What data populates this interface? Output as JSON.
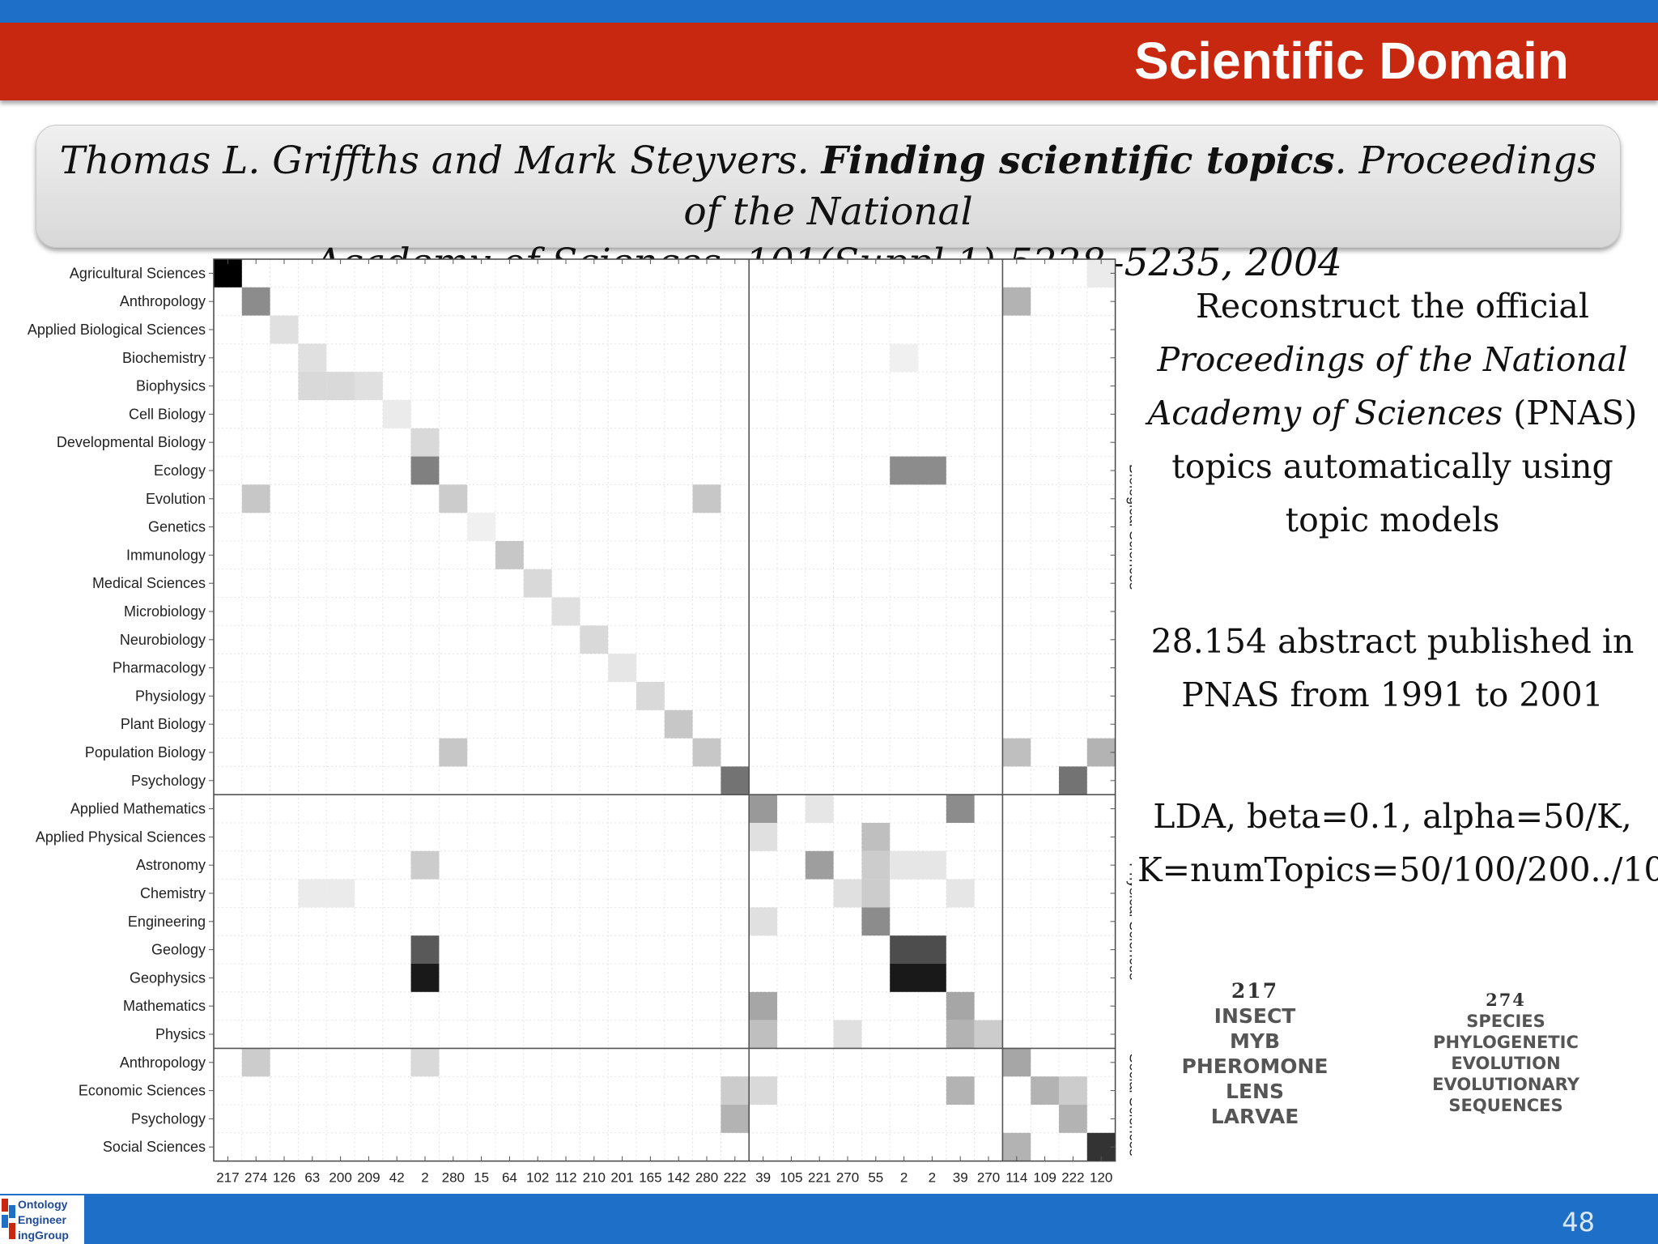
{
  "slide": {
    "title": "Scientific Domain",
    "page_number": "48",
    "logo_text": [
      "Ontology",
      "Engineer",
      "ingGroup"
    ]
  },
  "citation": {
    "authors": "Thomas L. Griffths and Mark Steyvers. ",
    "paper_title": "Finding scientific topics",
    "venue_line1": ". Proceedings of the National",
    "venue_line2": "Academy of Sciences, 101(Suppl 1):5228–5235, 2004"
  },
  "description": {
    "p1_a": "Reconstruct the official",
    "p1_italic": "Proceedings of the National Academy of Sciences",
    "p1_b": " (PNAS) topics automatically using topic models",
    "p2": "28.154 abstract published in PNAS from 1991 to 2001",
    "p3_line1": "LDA, beta=0.1, alpha=50/K,",
    "p3_line2": "K=numTopics=50/100/200../1000"
  },
  "topic_examples": [
    {
      "id": "217",
      "words": [
        "INSECT",
        "MYB",
        "PHEROMONE",
        "LENS",
        "LARVAE"
      ]
    },
    {
      "id": "274",
      "words": [
        "SPECIES",
        "PHYLOGENETIC",
        "EVOLUTION",
        "EVOLUTIONARY",
        "SEQUENCES"
      ]
    }
  ],
  "chart_data": {
    "type": "heatmap",
    "rows": [
      "Agricultural Sciences",
      "Anthropology",
      "Applied Biological Sciences",
      "Biochemistry",
      "Biophysics",
      "Cell Biology",
      "Developmental Biology",
      "Ecology",
      "Evolution",
      "Genetics",
      "Immunology",
      "Medical Sciences",
      "Microbiology",
      "Neurobiology",
      "Pharmacology",
      "Physiology",
      "Plant Biology",
      "Population Biology",
      "Psychology",
      "Applied Mathematics",
      "Applied Physical Sciences",
      "Astronomy",
      "Chemistry",
      "Engineering",
      "Geology",
      "Geophysics",
      "Mathematics",
      "Physics",
      "Anthropology",
      "Economic Sciences",
      "Psychology",
      "Social Sciences"
    ],
    "columns": [
      "217",
      "274",
      "126",
      "63",
      "200",
      "209",
      "42",
      "2",
      "280",
      "15",
      "64",
      "102",
      "112",
      "210",
      "201",
      "165",
      "142",
      "280",
      "222",
      "39",
      "105",
      "221",
      "270",
      "55",
      "2",
      "2",
      "39",
      "270",
      "114",
      "109",
      "222",
      "120"
    ],
    "groups": [
      {
        "label": "Biological Sciences",
        "row_start": 0,
        "row_end": 18,
        "col_start": 0,
        "col_end": 18
      },
      {
        "label": "Physical Sciences",
        "row_start": 19,
        "row_end": 27,
        "col_start": 19,
        "col_end": 27
      },
      {
        "label": "Social Sciences",
        "row_start": 28,
        "row_end": 31,
        "col_start": 28,
        "col_end": 31
      }
    ],
    "color_scale": "white-to-black",
    "cells": [
      [
        0,
        0,
        1.0
      ],
      [
        1,
        1,
        0.45
      ],
      [
        2,
        2,
        0.12
      ],
      [
        3,
        3,
        0.12
      ],
      [
        4,
        3,
        0.15
      ],
      [
        4,
        4,
        0.15
      ],
      [
        4,
        5,
        0.12
      ],
      [
        5,
        6,
        0.08
      ],
      [
        6,
        7,
        0.15
      ],
      [
        7,
        7,
        0.5
      ],
      [
        7,
        24,
        0.45
      ],
      [
        7,
        25,
        0.45
      ],
      [
        8,
        1,
        0.22
      ],
      [
        8,
        8,
        0.2
      ],
      [
        8,
        17,
        0.22
      ],
      [
        9,
        9,
        0.06
      ],
      [
        10,
        10,
        0.22
      ],
      [
        11,
        11,
        0.15
      ],
      [
        12,
        12,
        0.12
      ],
      [
        13,
        13,
        0.15
      ],
      [
        14,
        14,
        0.1
      ],
      [
        15,
        15,
        0.15
      ],
      [
        16,
        16,
        0.22
      ],
      [
        17,
        8,
        0.22
      ],
      [
        17,
        17,
        0.22
      ],
      [
        17,
        28,
        0.25
      ],
      [
        17,
        31,
        0.3
      ],
      [
        18,
        18,
        0.55
      ],
      [
        18,
        30,
        0.55
      ],
      [
        19,
        19,
        0.4
      ],
      [
        19,
        21,
        0.1
      ],
      [
        19,
        26,
        0.45
      ],
      [
        20,
        19,
        0.12
      ],
      [
        20,
        23,
        0.25
      ],
      [
        21,
        7,
        0.2
      ],
      [
        21,
        21,
        0.38
      ],
      [
        21,
        23,
        0.2
      ],
      [
        21,
        24,
        0.1
      ],
      [
        21,
        25,
        0.1
      ],
      [
        22,
        3,
        0.08
      ],
      [
        22,
        4,
        0.08
      ],
      [
        22,
        22,
        0.12
      ],
      [
        22,
        23,
        0.2
      ],
      [
        22,
        26,
        0.1
      ],
      [
        23,
        19,
        0.12
      ],
      [
        23,
        23,
        0.45
      ],
      [
        24,
        7,
        0.65
      ],
      [
        24,
        24,
        0.7
      ],
      [
        24,
        25,
        0.7
      ],
      [
        25,
        7,
        0.9
      ],
      [
        25,
        24,
        0.9
      ],
      [
        25,
        25,
        0.9
      ],
      [
        26,
        19,
        0.35
      ],
      [
        26,
        26,
        0.35
      ],
      [
        27,
        19,
        0.25
      ],
      [
        27,
        22,
        0.12
      ],
      [
        27,
        26,
        0.3
      ],
      [
        27,
        27,
        0.2
      ],
      [
        28,
        1,
        0.2
      ],
      [
        28,
        7,
        0.15
      ],
      [
        28,
        28,
        0.35
      ],
      [
        29,
        18,
        0.2
      ],
      [
        29,
        19,
        0.15
      ],
      [
        29,
        26,
        0.3
      ],
      [
        29,
        29,
        0.3
      ],
      [
        29,
        30,
        0.2
      ],
      [
        30,
        18,
        0.3
      ],
      [
        30,
        30,
        0.3
      ],
      [
        31,
        28,
        0.3
      ],
      [
        31,
        31,
        0.8
      ],
      [
        0,
        31,
        0.08
      ],
      [
        3,
        24,
        0.06
      ],
      [
        1,
        28,
        0.3
      ]
    ]
  }
}
